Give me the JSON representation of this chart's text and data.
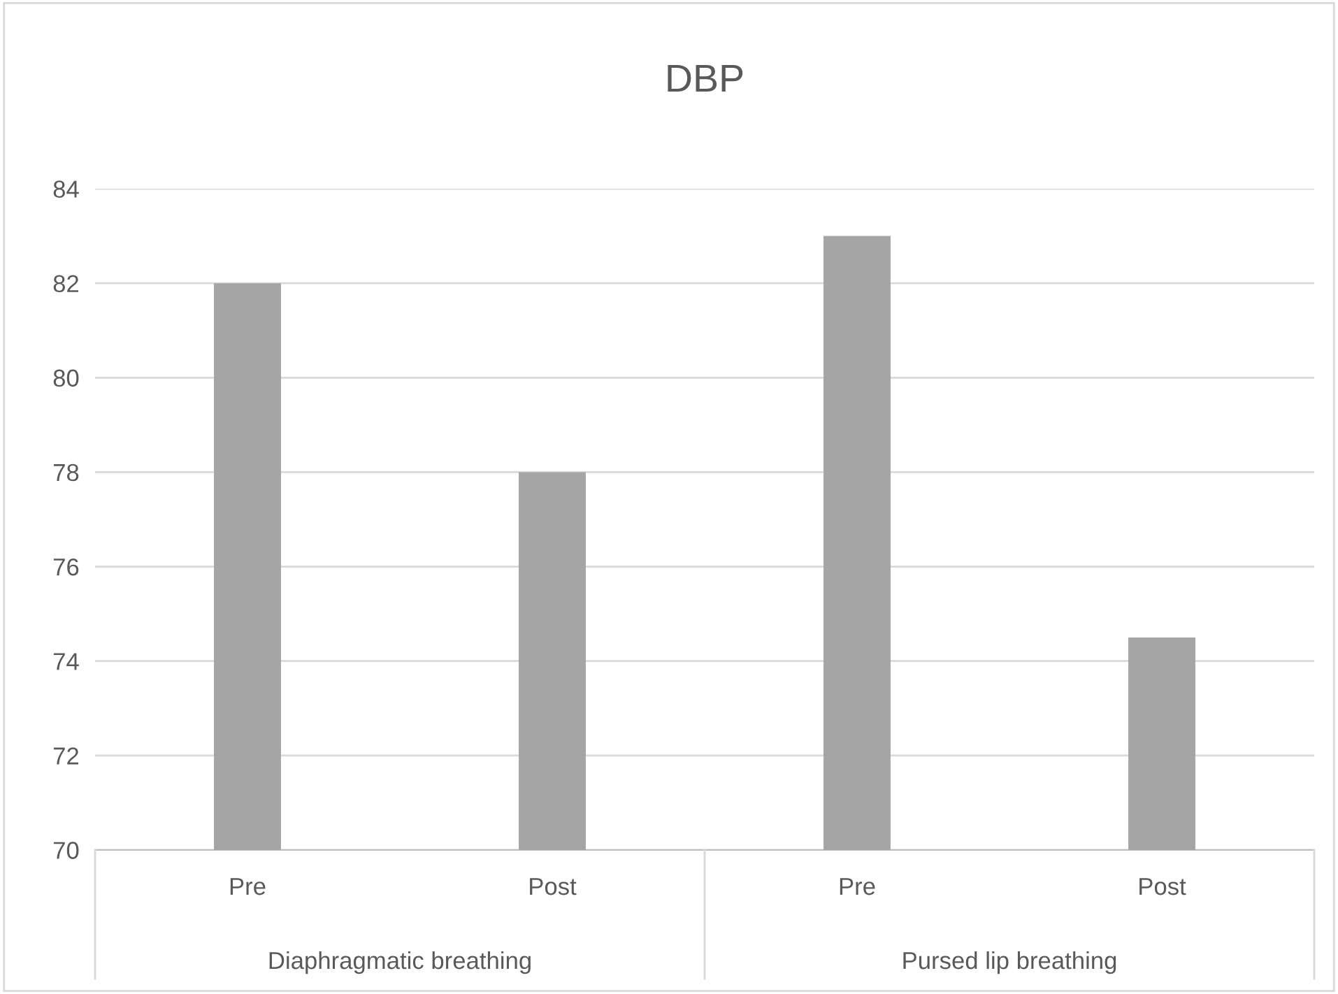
{
  "chart_data": {
    "type": "bar",
    "title": "DBP",
    "categories": [
      "Pre",
      "Post",
      "Pre",
      "Post"
    ],
    "values": [
      82,
      78,
      83,
      74.5
    ],
    "color": "#a5a5a5",
    "ylim": [
      70,
      84
    ],
    "yticks": [
      70,
      72,
      74,
      76,
      78,
      80,
      82,
      84
    ],
    "grid": "y",
    "annotations": [
      "Diaphragmatic breathing",
      "Pursed lip breathing"
    ]
  }
}
